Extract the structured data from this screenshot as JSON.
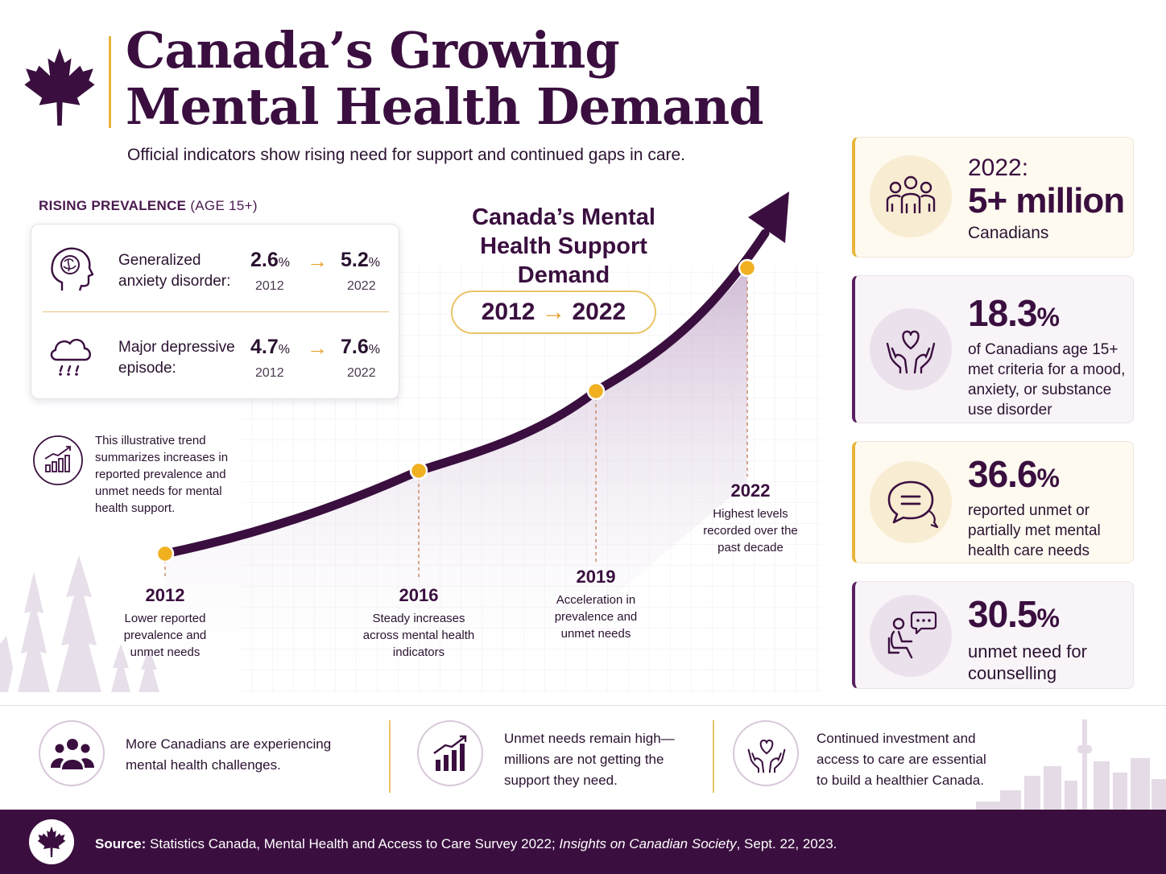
{
  "header": {
    "title_line1": "Canada’s Growing",
    "title_line2": "Mental Health Demand",
    "subtitle": "Official indicators show rising need for support and continued gaps in care."
  },
  "prevalence": {
    "heading_bold": "RISING PREVALENCE",
    "heading_light": " (AGE 15+)",
    "rows": [
      {
        "label": "Generalized anxiety disorder:",
        "icon": "brain-head-icon",
        "from_value": "2.6",
        "to_value": "5.2",
        "unit": "%",
        "from_year": "2012",
        "to_year": "2022"
      },
      {
        "label": "Major depressive episode:",
        "icon": "rain-cloud-icon",
        "from_value": "4.7",
        "to_value": "7.6",
        "unit": "%",
        "from_year": "2012",
        "to_year": "2022"
      }
    ],
    "arrow": "→"
  },
  "trend_note": "This illustrative trend summarizes increases in reported prevalence and unmet needs for mental health support.",
  "chart": {
    "title": "Canada’s Mental Health Support Demand",
    "range_start": "2012",
    "range_arrow": "→",
    "range_end": "2022",
    "milestones": [
      {
        "year": "2012",
        "desc": "Lower reported prevalence and unmet needs"
      },
      {
        "year": "2016",
        "desc": "Steady increases across mental health indicators"
      },
      {
        "year": "2019",
        "desc": "Acceleration in prevalence and unmet needs"
      },
      {
        "year": "2022",
        "desc": "Highest levels recorded over the past decade"
      }
    ]
  },
  "stats": [
    {
      "top": "2022:",
      "value": "5+ million",
      "unit": "",
      "desc": "Canadians",
      "icon": "people-group-icon"
    },
    {
      "top": "",
      "value": "18.3",
      "unit": "%",
      "desc": "of Canadians age 15+ met criteria for a mood, anxiety, or substance use disorder",
      "icon": "heart-hands-icon"
    },
    {
      "top": "",
      "value": "36.6",
      "unit": "%",
      "desc": "reported unmet or partially met mental health care needs",
      "icon": "speech-bubbles-icon"
    },
    {
      "top": "",
      "value": "30.5",
      "unit": "%",
      "desc": "unmet need for counselling",
      "icon": "counselling-person-icon"
    }
  ],
  "bottom": [
    {
      "icon": "people-icon",
      "text_bold": "More Canadians are",
      "text": " experiencing mental health challenges."
    },
    {
      "icon": "bar-chart-icon",
      "text_bold": "",
      "text": "Unmet needs remain high— millions are not getting the support they need."
    },
    {
      "icon": "heart-hands-icon",
      "text_bold": "",
      "text": "Continued investment and access to care are essential to build a healthier Canada."
    }
  ],
  "footer": {
    "source_label": "Source:",
    "source_text": " Statistics Canada, Mental Health and Access to Care Survey 2022; ",
    "source_italic": "Insights on Canadian Society",
    "source_end": ", Sept. 22, 2023."
  },
  "colors": {
    "primary": "#3a0f3f",
    "accent": "#e8a22a",
    "gold_border": "#e8b43a",
    "light_purple": "#ebe1ec"
  }
}
